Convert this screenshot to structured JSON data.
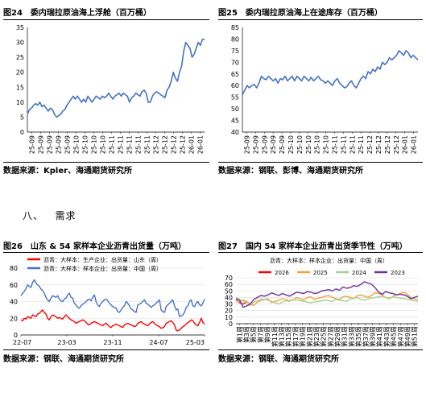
{
  "section": {
    "number": "八、",
    "title": "需求"
  },
  "figures": [
    {
      "id": "fig24",
      "title": "图24　委内瑞拉原油海上浮舱（百万桶）",
      "source": "数据来源：Kpler、海通期货研究所"
    },
    {
      "id": "fig25",
      "title": "图25　委内瑞拉原油海上在途库存（百万桶）",
      "source": "数据来源：钢联、彭博、海通期货研究所"
    },
    {
      "id": "fig26",
      "title": "图26　山东 & 54 家样本企业沥青出货量（万吨）",
      "source": "数据来源：钢联、海通期货研究所"
    },
    {
      "id": "fig27",
      "title": "图27　国内 54 家样本企业沥青出货季节性（万吨）",
      "source": "数据来源：钢联、海通期货研究所"
    }
  ],
  "chart_data": [
    {
      "type": "line",
      "figure": "fig24",
      "x_tick_labels": [
        "25-09",
        "25-09",
        "25-09",
        "25-09",
        "25-09",
        "25-10",
        "25-10",
        "25-10",
        "25-10",
        "25-11",
        "25-11",
        "25-11",
        "25-11",
        "25-11",
        "25-12",
        "25-12",
        "25-12",
        "25-12",
        "26-01",
        "26-01"
      ],
      "ylim": [
        0,
        35
      ],
      "y_ticks": [
        0,
        5,
        10,
        15,
        20,
        25,
        30,
        35
      ],
      "color": "#4472c4",
      "grid": false,
      "series": [
        {
          "values": [
            6,
            7.5,
            8,
            9,
            9.5,
            9,
            10,
            8.5,
            9,
            8,
            7,
            8,
            7.5,
            6,
            5,
            5.5,
            6,
            7,
            7.5,
            9,
            10,
            11,
            12,
            11,
            12,
            11,
            10,
            11,
            10,
            12,
            11,
            10,
            11,
            12,
            11.5,
            11,
            12,
            11.5,
            12,
            13,
            12,
            11,
            12,
            12.5,
            13,
            12,
            13,
            12.5,
            12,
            10,
            11.5,
            12,
            13,
            12.5,
            12,
            13.5,
            14,
            13,
            10,
            10,
            12,
            13,
            13.5,
            13,
            12.5,
            12,
            11.5,
            14,
            15,
            17,
            20,
            18,
            17,
            20,
            22,
            27,
            30,
            29,
            28,
            25,
            26,
            28,
            30,
            29,
            31,
            31
          ]
        }
      ]
    },
    {
      "type": "line",
      "figure": "fig25",
      "x_tick_labels": [
        "25-09",
        "25-09",
        "25-09",
        "25-09",
        "25-09",
        "25-10",
        "25-10",
        "25-10",
        "25-10",
        "25-10",
        "25-11",
        "25-11",
        "25-11",
        "25-11",
        "25-12",
        "25-12",
        "25-12",
        "25-12",
        "26-01",
        "26-01"
      ],
      "ylim": [
        40,
        85
      ],
      "y_ticks": [
        40,
        45,
        50,
        55,
        60,
        65,
        70,
        75,
        80,
        85
      ],
      "color": "#4472c4",
      "grid": false,
      "series": [
        {
          "values": [
            56,
            58,
            60,
            59,
            60,
            60.5,
            59,
            61,
            64,
            63,
            62.5,
            64,
            63,
            62,
            63,
            61,
            63,
            62.5,
            64,
            62,
            63,
            64,
            62,
            64,
            63,
            62,
            64,
            63,
            62,
            63.5,
            62,
            63,
            64,
            62.5,
            62,
            61,
            62,
            61,
            60,
            62,
            63,
            61,
            60,
            59,
            59.5,
            61,
            62,
            60,
            59,
            61,
            63,
            64,
            63,
            66,
            65,
            67,
            66,
            68,
            67,
            70,
            69,
            70,
            72,
            71,
            72,
            73,
            75,
            74,
            73,
            75,
            74,
            72,
            73,
            72,
            71
          ]
        }
      ]
    },
    {
      "type": "line",
      "figure": "fig26",
      "legend_position": "top-left",
      "x_tick_labels": [
        "22-07",
        "23-03",
        "23-11",
        "24-07",
        "25-03"
      ],
      "ylim": [
        0,
        80
      ],
      "y_ticks": [
        0,
        20,
        40,
        60,
        80
      ],
      "grid": true,
      "series": [
        {
          "name": "沥青：大样本：生产企业：出货量：山东（周）",
          "color": "#ff0000",
          "values": [
            18,
            17,
            20,
            19,
            22,
            21,
            20,
            24,
            23,
            22,
            25,
            26,
            28,
            30,
            27,
            25,
            20,
            18,
            22,
            24,
            23,
            22,
            20,
            21,
            20,
            19,
            22,
            24,
            22,
            20,
            18,
            17,
            16,
            14,
            15,
            16,
            17,
            18,
            17,
            15,
            13,
            12,
            14,
            15,
            16,
            15,
            14,
            13,
            12,
            11,
            13,
            14,
            12,
            10,
            9,
            11,
            12,
            13,
            12,
            11,
            10,
            9,
            12,
            13,
            14,
            13,
            12,
            11,
            10,
            11,
            14,
            15,
            16,
            14,
            13,
            12,
            11,
            13,
            15,
            16,
            14,
            12,
            11,
            10,
            8,
            9,
            10,
            14,
            15,
            16,
            17,
            15,
            12,
            6,
            5,
            6,
            8,
            10,
            11,
            13,
            15,
            16,
            18,
            17,
            14,
            12,
            11,
            15,
            20,
            15,
            13
          ]
        },
        {
          "name": "沥青：大样本：样本企业：出货量：中国（周）",
          "color": "#4472c4",
          "values": [
            47,
            50,
            52,
            55,
            60,
            58,
            57,
            63,
            66,
            62,
            60,
            58,
            55,
            53,
            50,
            45,
            42,
            40,
            44,
            47,
            46,
            45,
            47,
            43,
            41,
            40,
            43,
            44,
            48,
            50,
            45,
            44,
            38,
            36,
            33,
            32,
            35,
            37,
            38,
            40,
            42,
            43,
            41,
            45,
            48,
            40,
            36,
            34,
            38,
            40,
            42,
            43,
            41,
            38,
            36,
            34,
            33,
            32,
            28,
            27,
            30,
            33,
            35,
            40,
            38,
            35,
            31,
            30,
            28,
            27,
            36,
            37,
            38,
            40,
            42,
            38,
            37,
            35,
            33,
            35,
            36,
            38,
            40,
            42,
            30,
            28,
            27,
            34,
            36,
            38,
            40,
            42,
            35,
            30,
            31,
            22,
            23,
            24,
            27,
            33,
            35,
            40,
            42,
            35,
            34,
            38,
            40,
            36,
            35,
            38,
            43
          ]
        }
      ]
    },
    {
      "type": "line",
      "figure": "fig27",
      "legend_position": "top",
      "ylim": [
        0,
        70
      ],
      "y_ticks": [
        0,
        10,
        20,
        30,
        40,
        50,
        60,
        70
      ],
      "grid": true,
      "x_tick_labels": [
        "第1周",
        "第3周",
        "第5周",
        "第7周",
        "第9周",
        "第11周",
        "第13周",
        "第15周",
        "第17周",
        "第19周",
        "第21周",
        "第23周",
        "第25周",
        "第27周",
        "第29周",
        "第31周",
        "第33周",
        "第35周",
        "第37周",
        "第39周",
        "第41周",
        "第43周",
        "第45周",
        "第47周",
        "第49周",
        "第51周"
      ],
      "series": [
        {
          "name": "2026",
          "color": "#ff0000",
          "values": [
            36,
            32,
            30,
            33
          ]
        },
        {
          "name": "2025",
          "color": "#f4a13c",
          "values": [
            35,
            33,
            36,
            34,
            30,
            28,
            33,
            35,
            37,
            38,
            32,
            34,
            36,
            38,
            37,
            35,
            36,
            40,
            38,
            36,
            40,
            41,
            37,
            39,
            40,
            42,
            43,
            40,
            38,
            37,
            41,
            42,
            40,
            38,
            43,
            44,
            42,
            40,
            43,
            47,
            46,
            44,
            40,
            38,
            42,
            44,
            46,
            48,
            45,
            40,
            38,
            37
          ]
        },
        {
          "name": "2024",
          "color": "#a9d18e",
          "values": [
            40,
            37,
            35,
            30,
            28,
            33,
            35,
            38,
            37,
            36,
            34,
            32,
            30,
            33,
            35,
            34,
            37,
            36,
            35,
            34,
            33,
            32,
            33,
            34,
            35,
            36,
            35,
            34,
            37,
            36,
            35,
            34,
            38,
            39,
            40,
            37,
            36,
            38,
            39,
            40,
            41,
            42,
            40,
            39,
            41,
            40,
            39,
            38,
            37,
            36,
            35,
            34
          ]
        },
        {
          "name": "2023",
          "color": "#7030a0",
          "values": [
            38,
            36,
            25,
            27,
            30,
            37,
            40,
            43,
            42,
            44,
            47,
            45,
            43,
            46,
            44,
            42,
            45,
            48,
            47,
            46,
            49,
            48,
            46,
            47,
            50,
            51,
            52,
            50,
            53,
            51,
            56,
            54,
            55,
            58,
            57,
            60,
            64,
            62,
            60,
            55,
            48,
            45,
            49,
            47,
            46,
            44,
            45,
            44,
            42,
            38,
            40,
            42
          ]
        }
      ]
    }
  ]
}
